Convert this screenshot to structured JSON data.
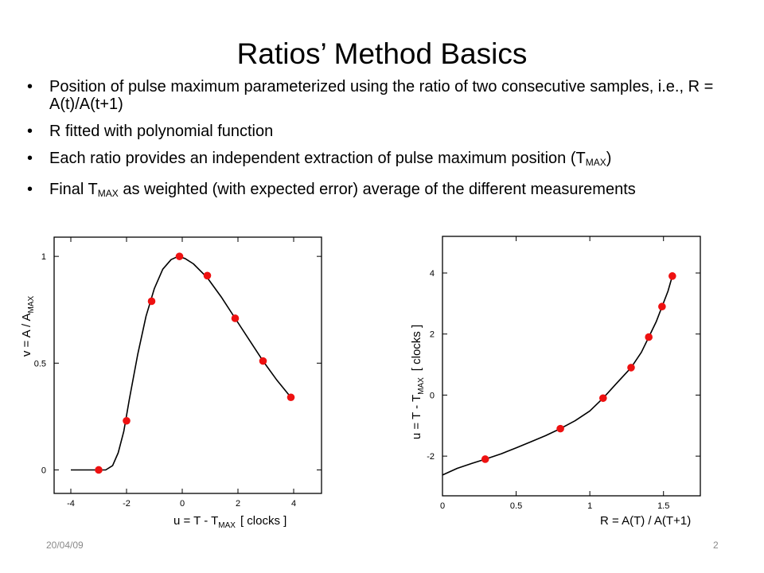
{
  "slide": {
    "title": "Ratios’ Method Basics",
    "bullet_symbol": "•",
    "bullets": [
      "Position of pulse maximum parameterized using the ratio of two consecutive samples, i.e., R = A(t)/A(t+1)",
      "R fitted with polynomial function",
      {
        "pre": "Each ratio provides an independent extraction of pulse maximum position (T",
        "sub": "MAX",
        "post": ")"
      },
      {
        "pre": "Final T",
        "sub": "MAX",
        "post": " as weighted (with expected error) average of the different measurements"
      }
    ],
    "footer_date": "20/04/09",
    "page_number": "2"
  },
  "colors": {
    "marker": "#ee1111",
    "curve": "#000000",
    "footer_text": "#8a8a8a"
  },
  "chart_data": [
    {
      "type": "scatter",
      "title": "",
      "xlabel": "u = T - T",
      "xlabel_sub": "MAX",
      "xlabel_units": "[ clocks ]",
      "ylabel": "v = A / A",
      "ylabel_sub": "MAX",
      "xlim": [
        -4.6,
        5.0
      ],
      "ylim": [
        -0.11,
        1.09
      ],
      "xticks": [
        -4,
        -2,
        0,
        2,
        4
      ],
      "xtick_labels": [
        "-4",
        "-2",
        "0",
        "2",
        "4"
      ],
      "yticks": [
        0,
        0.5,
        1
      ],
      "ytick_labels": [
        "0",
        "0.5",
        "1"
      ],
      "grid": false,
      "series": [
        {
          "x": [
            -3.0,
            -2.0,
            -1.1,
            -0.1,
            0.9,
            1.9,
            2.9,
            3.9
          ],
          "y": [
            0.0,
            0.23,
            0.79,
            1.0,
            0.91,
            0.71,
            0.51,
            0.34
          ]
        }
      ],
      "fit_curve": {
        "x": [
          -4.0,
          -3.0,
          -2.75,
          -2.5,
          -2.3,
          -2.1,
          -1.9,
          -1.6,
          -1.3,
          -1.0,
          -0.7,
          -0.4,
          -0.15,
          0.1,
          0.4,
          0.9,
          1.4,
          1.9,
          2.4,
          2.9,
          3.4,
          3.9
        ],
        "y": [
          0.0,
          0.0,
          0.0,
          0.02,
          0.08,
          0.18,
          0.33,
          0.54,
          0.72,
          0.85,
          0.94,
          0.985,
          1.0,
          0.99,
          0.965,
          0.9,
          0.81,
          0.71,
          0.61,
          0.51,
          0.42,
          0.34
        ]
      }
    },
    {
      "type": "scatter",
      "title": "",
      "xlabel": "R = A(T) / A(T+1)",
      "ylabel": "u = T - T",
      "ylabel_sub": "MAX",
      "ylabel_units": "[ clocks ]",
      "xlim": [
        0,
        1.75
      ],
      "ylim": [
        -3.3,
        5.2
      ],
      "xticks": [
        0,
        0.5,
        1,
        1.5
      ],
      "xtick_labels": [
        "0",
        "0.5",
        "1",
        "1.5"
      ],
      "yticks": [
        -2,
        0,
        2,
        4
      ],
      "ytick_labels": [
        "-2",
        "0",
        "2",
        "4"
      ],
      "grid": false,
      "series": [
        {
          "x": [
            0.29,
            0.8,
            1.09,
            1.28,
            1.4,
            1.49,
            1.56
          ],
          "y": [
            -2.1,
            -1.1,
            -0.1,
            0.9,
            1.9,
            2.9,
            3.9
          ]
        }
      ],
      "fit_curve": {
        "x": [
          0.0,
          0.1,
          0.2,
          0.29,
          0.4,
          0.5,
          0.6,
          0.7,
          0.8,
          0.9,
          1.0,
          1.09,
          1.18,
          1.28,
          1.35,
          1.4,
          1.45,
          1.49,
          1.53,
          1.56
        ],
        "y": [
          -2.62,
          -2.4,
          -2.24,
          -2.1,
          -1.92,
          -1.73,
          -1.53,
          -1.33,
          -1.1,
          -0.84,
          -0.52,
          -0.1,
          0.38,
          0.9,
          1.4,
          1.9,
          2.4,
          2.9,
          3.4,
          3.9
        ]
      }
    }
  ]
}
